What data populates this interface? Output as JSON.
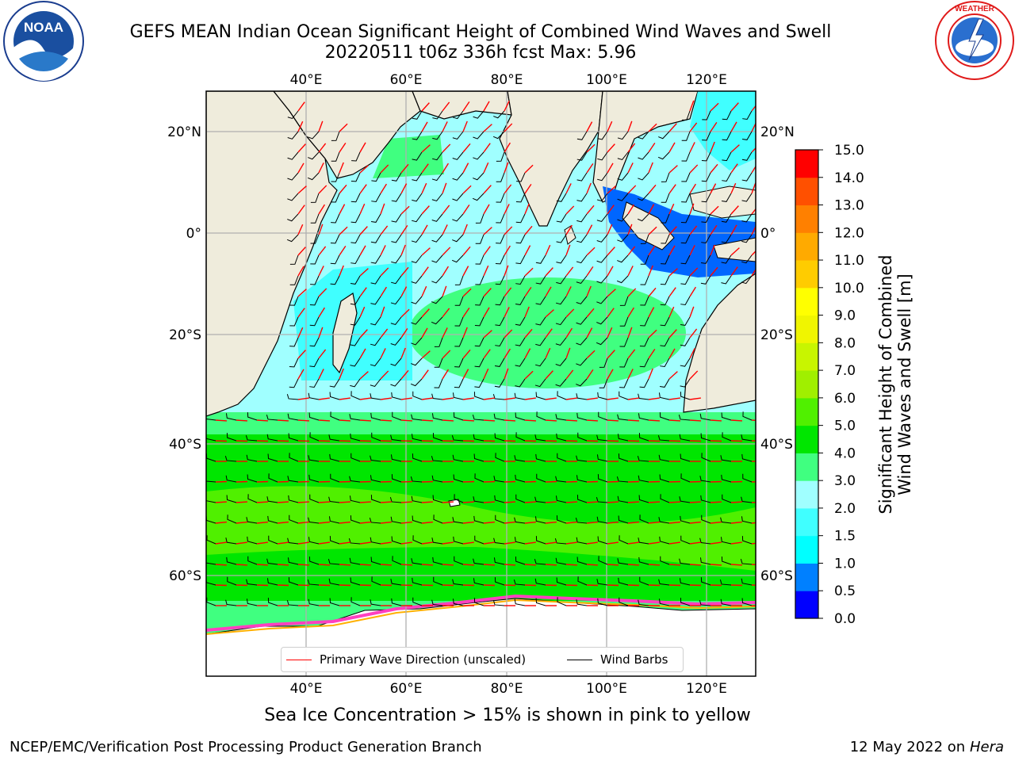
{
  "title": {
    "line1": "GEFS MEAN Indian Ocean Significant Height of Combined Wind Waves and Swell",
    "line2": "20220511 t06z 336h fcst   Max: 5.96"
  },
  "logos": {
    "noaa": "NOAA",
    "noaa_ring": "NATIONAL OCEANIC AND ATMOSPHERIC ADMINISTRATION · U.S. DEPARTMENT OF COMMERCE",
    "nws_ring": "NATIONAL WEATHER SERVICE"
  },
  "map": {
    "lon_ticks_top": [
      "40°E",
      "60°E",
      "80°E",
      "100°E",
      "120°E"
    ],
    "lon_ticks_bottom": [
      "40°E",
      "60°E",
      "80°E",
      "100°E",
      "120°E"
    ],
    "lat_ticks_left": [
      "20°N",
      "0°",
      "20°S",
      "40°S",
      "60°S"
    ],
    "lat_ticks_right": [
      "20°N",
      "0°",
      "20°S",
      "40°S",
      "60°S"
    ],
    "land_color": "#efecdc",
    "grid_color": "#b0b0b0",
    "wave_arrow_color": "#ff0000",
    "barb_color": "#000000"
  },
  "legend": {
    "wave": "Primary Wave Direction (unscaled)",
    "barbs": "Wind Barbs"
  },
  "colorbar": {
    "label": "Significant Height of Combined Wind Waves and Swell [m]",
    "ticks": [
      "0.0",
      "0.5",
      "1.0",
      "1.5",
      "2.0",
      "3.0",
      "4.0",
      "5.0",
      "6.0",
      "7.0",
      "8.0",
      "9.0",
      "10.0",
      "11.0",
      "12.0",
      "13.0",
      "14.0",
      "15.0"
    ],
    "colors": [
      "#0000ff",
      "#0080ff",
      "#00ffff",
      "#40ffff",
      "#a0ffff",
      "#40ff80",
      "#00e600",
      "#50f000",
      "#a0ef00",
      "#c8f500",
      "#f0f500",
      "#ffff00",
      "#ffcc00",
      "#ffaa00",
      "#ff8000",
      "#ff5000",
      "#ff0000"
    ]
  },
  "caption": "Sea Ice Concentration > 15% is shown in pink to yellow",
  "footer": {
    "left": "NCEP/EMC/Verification Post Processing Product Generation Branch",
    "right_date": "12 May 2022 on",
    "right_host": "Hera"
  }
}
